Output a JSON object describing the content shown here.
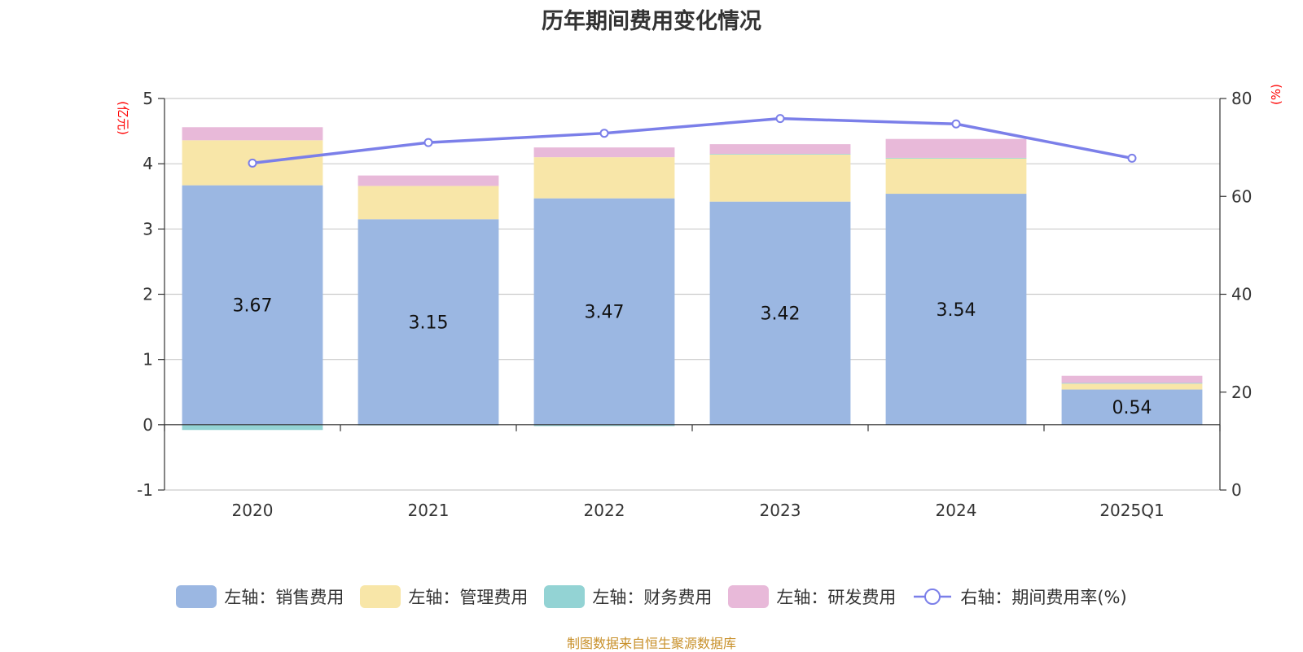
{
  "chart_data": {
    "type": "bar",
    "stacked": true,
    "title": "历年期间费用变化情况",
    "categories": [
      "2020",
      "2021",
      "2022",
      "2023",
      "2024",
      "2025Q1"
    ],
    "left_axis": {
      "unit": "(亿元)",
      "min": -1,
      "max": 5,
      "ticks": [
        -1,
        0,
        1,
        2,
        3,
        4,
        5
      ]
    },
    "right_axis": {
      "unit": "(%)",
      "min": 0,
      "max": 80,
      "ticks": [
        0,
        20,
        40,
        60,
        80
      ]
    },
    "series": [
      {
        "name": "左轴：销售费用",
        "type": "bar",
        "axis": "left",
        "color": "#9bb7e2",
        "values": [
          3.67,
          3.15,
          3.47,
          3.42,
          3.54,
          0.54
        ],
        "show_labels": true
      },
      {
        "name": "左轴：管理费用",
        "type": "bar",
        "axis": "left",
        "color": "#f8e6a8",
        "values": [
          0.69,
          0.51,
          0.63,
          0.72,
          0.54,
          0.09
        ]
      },
      {
        "name": "左轴：财务费用",
        "type": "bar",
        "axis": "left",
        "color": "#93d3d4",
        "values": [
          -0.08,
          -0.01,
          -0.02,
          0.01,
          0.01,
          0.01
        ]
      },
      {
        "name": "左轴：研发费用",
        "type": "bar",
        "axis": "left",
        "color": "#e8b9d9",
        "values": [
          0.2,
          0.16,
          0.15,
          0.15,
          0.29,
          0.11
        ]
      },
      {
        "name": "右轴：期间费用率(%)",
        "type": "line",
        "axis": "right",
        "color": "#7b7fe9",
        "values": [
          66.8,
          71.0,
          72.9,
          75.9,
          74.8,
          67.8
        ]
      }
    ],
    "legend_position": "bottom",
    "grid": true
  },
  "source": "制图数据来自恒生聚源数据库"
}
